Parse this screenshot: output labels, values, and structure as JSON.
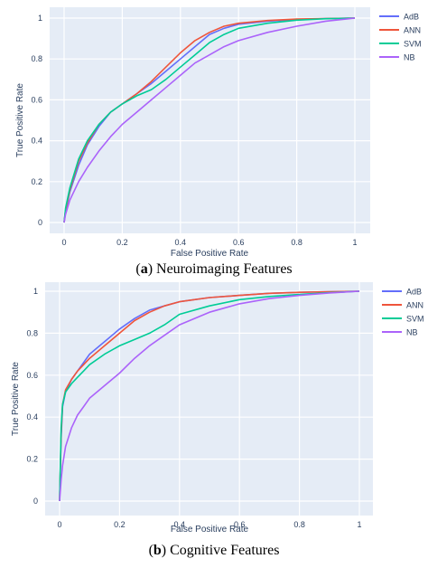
{
  "chart_data": [
    {
      "type": "line",
      "caption_letter": "a",
      "caption_text": "Neuroimaging Features",
      "xlabel": "False Positive Rate",
      "ylabel": "True Positive Rate",
      "xlim": [
        0,
        1
      ],
      "ylim": [
        0,
        1
      ],
      "xticks": [
        "0",
        "0.2",
        "0.4",
        "0.6",
        "0.8",
        "1"
      ],
      "yticks": [
        "0",
        "0.2",
        "0.4",
        "0.6",
        "0.8",
        "1"
      ],
      "grid": true,
      "legend_position": "top-right",
      "series": [
        {
          "name": "AdB",
          "color": "#636efa",
          "x": [
            0,
            0.005,
            0.02,
            0.05,
            0.08,
            0.12,
            0.16,
            0.2,
            0.25,
            0.3,
            0.35,
            0.4,
            0.45,
            0.5,
            0.55,
            0.6,
            0.7,
            0.8,
            0.9,
            1
          ],
          "y": [
            0,
            0.05,
            0.15,
            0.28,
            0.38,
            0.47,
            0.54,
            0.58,
            0.63,
            0.68,
            0.74,
            0.8,
            0.86,
            0.92,
            0.95,
            0.97,
            0.985,
            0.993,
            0.998,
            1
          ]
        },
        {
          "name": "ANN",
          "color": "#ef553b",
          "x": [
            0,
            0.005,
            0.02,
            0.05,
            0.08,
            0.12,
            0.16,
            0.2,
            0.25,
            0.3,
            0.35,
            0.4,
            0.45,
            0.5,
            0.55,
            0.6,
            0.7,
            0.8,
            0.9,
            1
          ],
          "y": [
            0,
            0.06,
            0.16,
            0.3,
            0.39,
            0.48,
            0.54,
            0.58,
            0.63,
            0.69,
            0.76,
            0.83,
            0.89,
            0.93,
            0.96,
            0.975,
            0.988,
            0.995,
            0.998,
            1
          ]
        },
        {
          "name": "SVM",
          "color": "#00cc96",
          "x": [
            0,
            0.005,
            0.02,
            0.05,
            0.08,
            0.12,
            0.16,
            0.2,
            0.25,
            0.3,
            0.35,
            0.4,
            0.45,
            0.5,
            0.55,
            0.6,
            0.7,
            0.8,
            0.9,
            1
          ],
          "y": [
            0,
            0.07,
            0.17,
            0.31,
            0.4,
            0.48,
            0.54,
            0.58,
            0.62,
            0.65,
            0.7,
            0.76,
            0.82,
            0.88,
            0.92,
            0.95,
            0.975,
            0.99,
            0.997,
            1
          ]
        },
        {
          "name": "NB",
          "color": "#ab63fa",
          "x": [
            0,
            0.005,
            0.02,
            0.05,
            0.08,
            0.12,
            0.16,
            0.2,
            0.25,
            0.3,
            0.35,
            0.4,
            0.45,
            0.5,
            0.55,
            0.6,
            0.7,
            0.8,
            0.9,
            1
          ],
          "y": [
            0,
            0.04,
            0.11,
            0.2,
            0.27,
            0.35,
            0.42,
            0.48,
            0.54,
            0.6,
            0.66,
            0.72,
            0.78,
            0.82,
            0.86,
            0.89,
            0.93,
            0.96,
            0.985,
            1
          ]
        }
      ]
    },
    {
      "type": "line",
      "caption_letter": "b",
      "caption_text": "Cognitive Features",
      "xlabel": "False Positive Rate",
      "ylabel": "True Positive Rate",
      "xlim": [
        0,
        1
      ],
      "ylim": [
        0,
        1
      ],
      "xticks": [
        "0",
        "0.2",
        "0.4",
        "0.6",
        "0.8",
        "1"
      ],
      "yticks": [
        "0",
        "0.2",
        "0.4",
        "0.6",
        "0.8",
        "1"
      ],
      "grid": true,
      "legend_position": "top-right",
      "series": [
        {
          "name": "AdB",
          "color": "#636efa",
          "x": [
            0,
            0.005,
            0.01,
            0.02,
            0.04,
            0.06,
            0.08,
            0.1,
            0.15,
            0.2,
            0.25,
            0.3,
            0.35,
            0.4,
            0.5,
            0.6,
            0.7,
            0.8,
            0.9,
            1
          ],
          "y": [
            0,
            0.3,
            0.45,
            0.52,
            0.58,
            0.62,
            0.66,
            0.7,
            0.76,
            0.82,
            0.87,
            0.91,
            0.93,
            0.95,
            0.97,
            0.98,
            0.99,
            0.995,
            0.998,
            1
          ]
        },
        {
          "name": "ANN",
          "color": "#ef553b",
          "x": [
            0,
            0.005,
            0.01,
            0.02,
            0.04,
            0.06,
            0.08,
            0.1,
            0.15,
            0.2,
            0.25,
            0.3,
            0.35,
            0.4,
            0.5,
            0.6,
            0.7,
            0.8,
            0.9,
            1
          ],
          "y": [
            0,
            0.32,
            0.46,
            0.53,
            0.58,
            0.62,
            0.65,
            0.68,
            0.74,
            0.8,
            0.86,
            0.9,
            0.93,
            0.95,
            0.97,
            0.98,
            0.99,
            0.995,
            0.998,
            1
          ]
        },
        {
          "name": "SVM",
          "color": "#00cc96",
          "x": [
            0,
            0.005,
            0.01,
            0.02,
            0.04,
            0.06,
            0.08,
            0.1,
            0.15,
            0.2,
            0.25,
            0.3,
            0.35,
            0.4,
            0.5,
            0.6,
            0.7,
            0.8,
            0.9,
            1
          ],
          "y": [
            0,
            0.35,
            0.46,
            0.52,
            0.56,
            0.59,
            0.62,
            0.65,
            0.7,
            0.74,
            0.77,
            0.8,
            0.84,
            0.89,
            0.93,
            0.96,
            0.975,
            0.985,
            0.993,
            1
          ]
        },
        {
          "name": "NB",
          "color": "#ab63fa",
          "x": [
            0,
            0.005,
            0.01,
            0.02,
            0.04,
            0.06,
            0.08,
            0.1,
            0.15,
            0.2,
            0.25,
            0.3,
            0.35,
            0.4,
            0.5,
            0.6,
            0.7,
            0.8,
            0.9,
            1
          ],
          "y": [
            0,
            0.1,
            0.17,
            0.26,
            0.35,
            0.41,
            0.45,
            0.49,
            0.55,
            0.61,
            0.68,
            0.74,
            0.79,
            0.84,
            0.9,
            0.94,
            0.965,
            0.98,
            0.992,
            1
          ]
        }
      ]
    }
  ]
}
